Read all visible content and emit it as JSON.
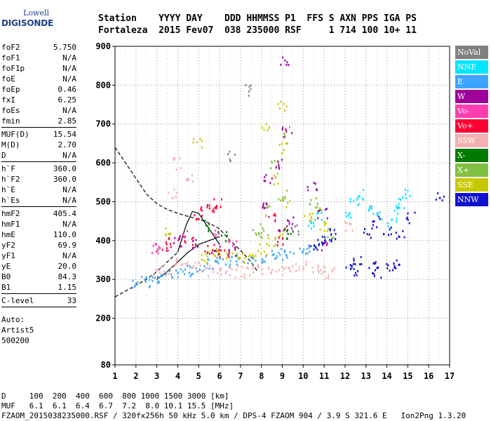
{
  "logo": {
    "line1": "Lowell",
    "line2": "DIGISONDE"
  },
  "header": {
    "line1": "Station    YYYY DAY    DDD HHMMSS P1  FFS S AXN PPS IGA PS",
    "line2": "Fortaleza  2015 Fev07  038 235000 RSF     1 714 100 10+ 11"
  },
  "params_group1": [
    {
      "label": "foF2",
      "value": "5.750"
    },
    {
      "label": "foF1",
      "value": "N/A"
    },
    {
      "label": "foF1p",
      "value": "N/A"
    },
    {
      "label": "foE",
      "value": "N/A"
    },
    {
      "label": "foEp",
      "value": "0.46"
    },
    {
      "label": "fxI",
      "value": "6.25"
    },
    {
      "label": "foEs",
      "value": "N/A"
    },
    {
      "label": "fmin",
      "value": "2.85"
    }
  ],
  "params_group2": [
    {
      "label": "MUF(D)",
      "value": "15.54"
    },
    {
      "label": "M(D)",
      "value": "2.70"
    },
    {
      "label": "D",
      "value": "N/A"
    }
  ],
  "params_group3": [
    {
      "label": "h`F",
      "value": "360.0"
    },
    {
      "label": "h`F2",
      "value": "360.0"
    },
    {
      "label": "h`E",
      "value": "N/A"
    },
    {
      "label": "h`Es",
      "value": "N/A"
    }
  ],
  "params_group4": [
    {
      "label": "hmF2",
      "value": "405.4"
    },
    {
      "label": "hmF1",
      "value": "N/A"
    },
    {
      "label": "hmE",
      "value": "110.0"
    },
    {
      "label": "yF2",
      "value": "69.9"
    },
    {
      "label": "yF1",
      "value": "N/A"
    },
    {
      "label": "yE",
      "value": "20.0"
    },
    {
      "label": "B0",
      "value": "84.3"
    },
    {
      "label": "B1",
      "value": "1.15"
    }
  ],
  "params_group5": [
    {
      "label": "C-level",
      "value": "33"
    }
  ],
  "auto": {
    "line1": "Auto:",
    "line2": "Artist5",
    "line3": "500200"
  },
  "legend": [
    {
      "label": "NoVal",
      "color": "#808080"
    },
    {
      "label": "NNE",
      "color": "#00e5ff"
    },
    {
      "label": "E",
      "color": "#3da5ff"
    },
    {
      "label": "W",
      "color": "#a0009a"
    },
    {
      "label": "Vo-",
      "color": "#ff3fb0"
    },
    {
      "label": "Vo+",
      "color": "#ff0033"
    },
    {
      "label": "SSW",
      "color": "#f4b0b0"
    },
    {
      "label": "X-",
      "color": "#007a00"
    },
    {
      "label": "X+",
      "color": "#80c040"
    },
    {
      "label": "SSE",
      "color": "#c8c800"
    },
    {
      "label": "NNW",
      "color": "#1010d0"
    }
  ],
  "footer": {
    "line1": "D     100  200  400  600  800 1000 1500 3000 [km]",
    "line2": "MUF   6.1  6.1  6.4  6.7  7.2  8.0 10.1 15.5 [MHz]",
    "line3": "FZAOM_2015038235000.RSF / 320fx256h 50 kHz 5.0 km / DPS-4 FZAOM 904 / 3.9 S 321.6 E   Ion2Png 1.3.20"
  },
  "chart_data": {
    "type": "scatter",
    "xlim": [
      1,
      17
    ],
    "ylim": [
      80,
      900
    ],
    "x_ticks": [
      1,
      2,
      3,
      4,
      5,
      6,
      7,
      8,
      9,
      10,
      11,
      12,
      13,
      14,
      15,
      16,
      17
    ],
    "y_ticks": [
      80,
      200,
      300,
      400,
      500,
      600,
      700,
      800,
      900
    ],
    "grid": true,
    "legend_position": "right",
    "series": [
      {
        "name": "E",
        "points": [
          [
            2.0,
            292
          ],
          [
            2.4,
            296
          ],
          [
            2.8,
            300
          ],
          [
            3.2,
            306
          ],
          [
            3.6,
            312
          ],
          [
            4.0,
            318
          ],
          [
            4.4,
            324
          ],
          [
            4.8,
            330
          ],
          [
            5.2,
            336
          ],
          [
            5.6,
            340
          ],
          [
            6.0,
            344
          ],
          [
            6.5,
            348
          ],
          [
            7.0,
            352
          ],
          [
            7.5,
            356
          ],
          [
            8.0,
            360
          ],
          [
            8.5,
            364
          ],
          [
            9.0,
            367
          ],
          [
            9.3,
            370
          ],
          [
            10.0,
            372
          ],
          [
            10.3,
            376
          ]
        ]
      },
      {
        "name": "SSW",
        "points": [
          [
            3.0,
            320
          ],
          [
            3.5,
            330
          ],
          [
            4.0,
            345
          ],
          [
            4.5,
            340
          ],
          [
            5.0,
            335
          ],
          [
            5.5,
            325
          ],
          [
            6.0,
            320
          ],
          [
            6.5,
            318
          ],
          [
            7.0,
            322
          ],
          [
            7.5,
            326
          ],
          [
            8.0,
            330
          ],
          [
            8.5,
            328
          ],
          [
            9.0,
            326
          ],
          [
            9.5,
            330
          ],
          [
            10.0,
            335
          ],
          [
            10.5,
            330
          ],
          [
            11.0,
            325
          ],
          [
            11.3,
            320
          ],
          [
            4.0,
            600
          ],
          [
            4.6,
            560
          ],
          [
            3.7,
            520
          ],
          [
            12.1,
            440
          ]
        ]
      },
      {
        "name": "SSE",
        "points": [
          [
            5.2,
            360
          ],
          [
            5.6,
            370
          ],
          [
            6.0,
            365
          ],
          [
            6.5,
            360
          ],
          [
            7.0,
            358
          ],
          [
            7.5,
            370
          ],
          [
            8.0,
            380
          ],
          [
            8.5,
            400
          ],
          [
            9.0,
            420
          ],
          [
            9.2,
            500
          ],
          [
            8.7,
            560
          ],
          [
            9.0,
            640
          ],
          [
            8.2,
            700
          ],
          [
            9.0,
            750
          ],
          [
            10.2,
            460
          ],
          [
            10.6,
            480
          ],
          [
            11.0,
            440
          ],
          [
            4.9,
            650
          ],
          [
            3.5,
            420
          ]
        ]
      },
      {
        "name": "X+",
        "points": [
          [
            8.3,
            480
          ],
          [
            9.0,
            520
          ],
          [
            8.6,
            600
          ],
          [
            9.1,
            680
          ],
          [
            10.5,
            500
          ],
          [
            11.2,
            420
          ],
          [
            8.1,
            420
          ],
          [
            7.7,
            430
          ]
        ]
      },
      {
        "name": "Vo+",
        "points": [
          [
            5.0,
            470
          ],
          [
            5.3,
            480
          ],
          [
            5.6,
            488
          ],
          [
            5.9,
            495
          ],
          [
            3.3,
            390
          ],
          [
            3.6,
            395
          ],
          [
            4.5,
            400
          ],
          [
            5.5,
            380
          ],
          [
            6.2,
            370
          ],
          [
            8.5,
            460
          ],
          [
            8.8,
            400
          ]
        ]
      },
      {
        "name": "Vo-",
        "points": [
          [
            2.9,
            380
          ],
          [
            3.2,
            370
          ],
          [
            4.2,
            420
          ],
          [
            5.7,
            420
          ],
          [
            6.6,
            390
          ]
        ]
      },
      {
        "name": "W",
        "points": [
          [
            4.0,
            400
          ],
          [
            4.7,
            390
          ],
          [
            5.8,
            380
          ],
          [
            6.6,
            370
          ],
          [
            8.0,
            500
          ],
          [
            8.3,
            560
          ],
          [
            8.9,
            600
          ],
          [
            9.2,
            680
          ],
          [
            9.4,
            450
          ],
          [
            9.0,
            420
          ],
          [
            10.4,
            540
          ],
          [
            10.9,
            470
          ],
          [
            11.0,
            390
          ],
          [
            9.1,
            860
          ]
        ]
      },
      {
        "name": "X-",
        "points": [
          [
            5.5,
            440
          ],
          [
            6.1,
            410
          ],
          [
            9.3,
            420
          ]
        ]
      },
      {
        "name": "NNE",
        "points": [
          [
            10.4,
            440
          ],
          [
            10.7,
            470
          ],
          [
            12.2,
            470
          ],
          [
            12.4,
            500
          ],
          [
            13.2,
            480
          ],
          [
            13.5,
            470
          ],
          [
            14.2,
            450
          ],
          [
            14.4,
            480
          ],
          [
            14.7,
            500
          ],
          [
            12.8,
            520
          ],
          [
            14.9,
            520
          ]
        ]
      },
      {
        "name": "NNW",
        "points": [
          [
            10.5,
            380
          ],
          [
            10.8,
            390
          ],
          [
            11.1,
            400
          ],
          [
            11.3,
            420
          ],
          [
            12.2,
            340
          ],
          [
            12.4,
            320
          ],
          [
            12.6,
            350
          ],
          [
            13.3,
            340
          ],
          [
            13.5,
            320
          ],
          [
            14.1,
            330
          ],
          [
            14.4,
            340
          ],
          [
            13.1,
            420
          ],
          [
            13.4,
            450
          ],
          [
            14.0,
            430
          ],
          [
            14.6,
            420
          ],
          [
            15.1,
            460
          ],
          [
            16.5,
            520
          ]
        ]
      },
      {
        "name": "NoVal",
        "points": [
          [
            7.3,
            790
          ],
          [
            6.6,
            620
          ],
          [
            9.6,
            430
          ]
        ]
      }
    ],
    "trace_dashed": [
      [
        1.0,
        640
      ],
      [
        1.5,
        600
      ],
      [
        2.0,
        560
      ],
      [
        2.5,
        520
      ],
      [
        3.0,
        495
      ],
      [
        3.5,
        480
      ],
      [
        4.0,
        470
      ],
      [
        4.5,
        462
      ],
      [
        5.0,
        455
      ],
      [
        5.5,
        445
      ],
      [
        6.0,
        430
      ],
      [
        6.5,
        400
      ],
      [
        7.0,
        375
      ],
      [
        7.5,
        345
      ],
      [
        7.8,
        322
      ]
    ],
    "trace_lower_dashed": [
      [
        1.0,
        255
      ],
      [
        1.5,
        270
      ],
      [
        2.0,
        285
      ],
      [
        2.5,
        300
      ],
      [
        3.0,
        320
      ],
      [
        3.5,
        345
      ],
      [
        4.0,
        370
      ]
    ],
    "trace_solid_1": [
      [
        3.0,
        300
      ],
      [
        3.5,
        320
      ],
      [
        4.0,
        345
      ],
      [
        4.5,
        370
      ],
      [
        5.0,
        390
      ],
      [
        5.5,
        400
      ],
      [
        6.0,
        410
      ]
    ],
    "trace_solid_2": [
      [
        4.0,
        370
      ],
      [
        4.4,
        440
      ],
      [
        4.7,
        475
      ],
      [
        5.0,
        470
      ],
      [
        5.5,
        430
      ],
      [
        6.0,
        390
      ]
    ]
  }
}
